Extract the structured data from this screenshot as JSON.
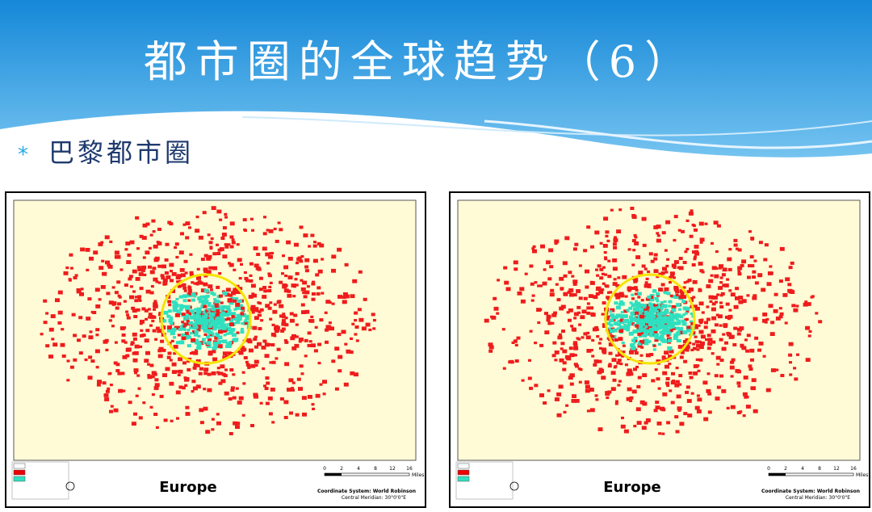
{
  "header": {
    "title": "都市圈的全球趋势（6）"
  },
  "bullets": [
    "巴黎都市圈"
  ],
  "maps": [
    {
      "region": "Europe",
      "coordinate_system": "Coordinate System: World Robinson",
      "meridian": "Central Meridian: 30°0'0\"E",
      "scale": [
        "0",
        "2",
        "4",
        "8",
        "12",
        "16"
      ],
      "scale_unit": "Miles"
    },
    {
      "region": "Europe",
      "coordinate_system": "Coordinate System: World Robinson",
      "meridian": "Central Meridian: 30°0'0\"E",
      "scale": [
        "0",
        "2",
        "4",
        "8",
        "12",
        "16"
      ],
      "scale_unit": "Miles"
    }
  ]
}
